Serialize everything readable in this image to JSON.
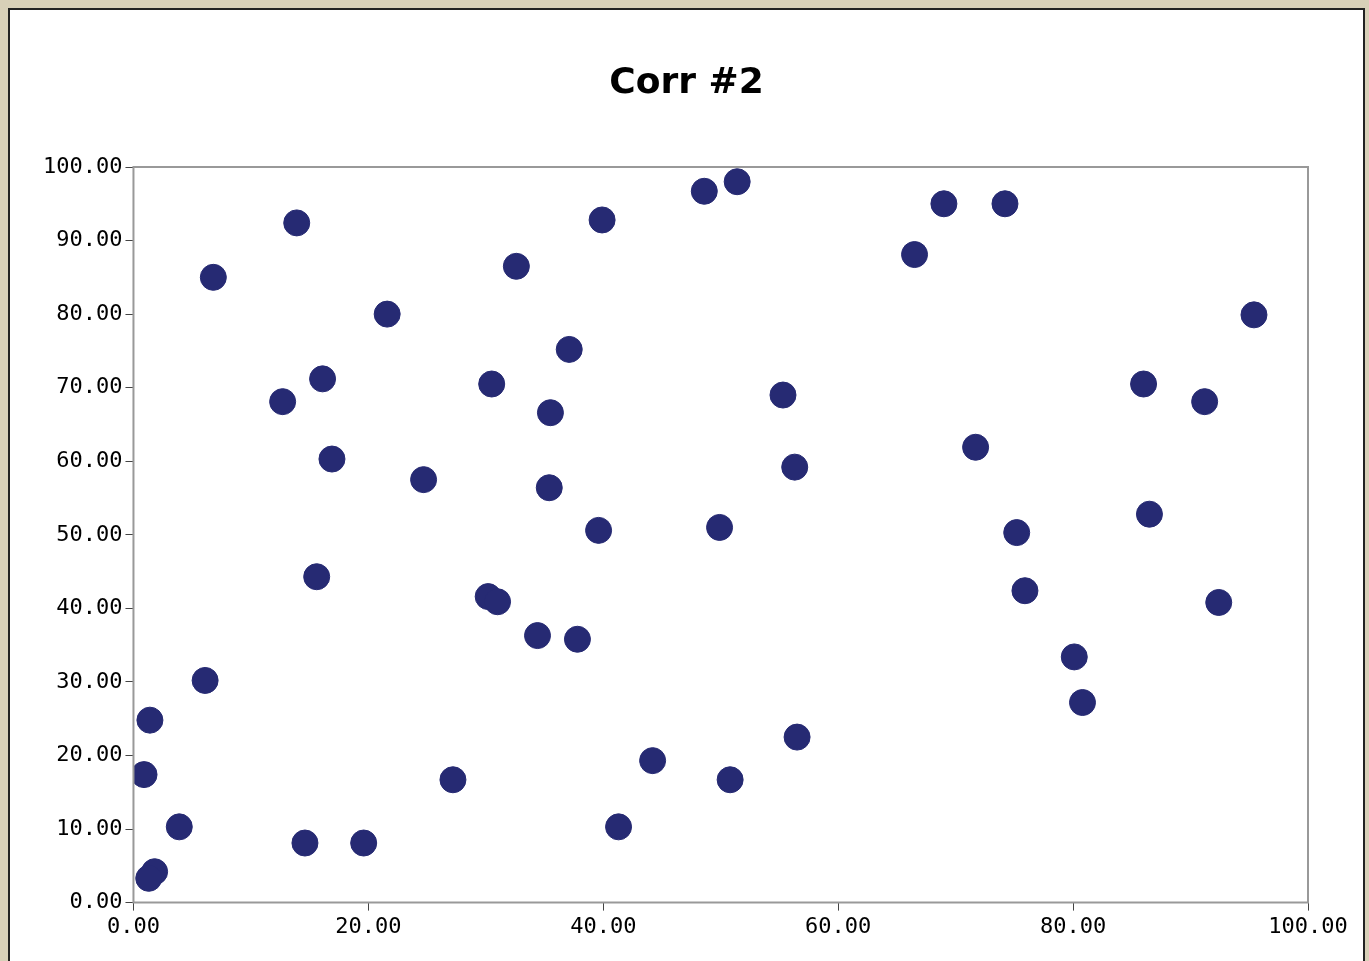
{
  "chart_data": {
    "type": "scatter",
    "title": "Corr #2",
    "marker": "circle",
    "grid": false,
    "legend": false,
    "xlim": [
      0,
      100
    ],
    "ylim": [
      0,
      100
    ],
    "xticks": [
      {
        "value": 0,
        "label": "0.00"
      },
      {
        "value": 20,
        "label": "20.00"
      },
      {
        "value": 40,
        "label": "40.00"
      },
      {
        "value": 60,
        "label": "60.00"
      },
      {
        "value": 80,
        "label": "80.00"
      },
      {
        "value": 100,
        "label": "100.00"
      }
    ],
    "yticks": [
      {
        "value": 0,
        "label": "0.00"
      },
      {
        "value": 10,
        "label": "10.00"
      },
      {
        "value": 20,
        "label": "20.00"
      },
      {
        "value": 30,
        "label": "30.00"
      },
      {
        "value": 40,
        "label": "40.00"
      },
      {
        "value": 50,
        "label": "50.00"
      },
      {
        "value": 60,
        "label": "60.00"
      },
      {
        "value": 70,
        "label": "70.00"
      },
      {
        "value": 80,
        "label": "80.00"
      },
      {
        "value": 90,
        "label": "90.00"
      },
      {
        "value": 100,
        "label": "100.00"
      }
    ],
    "series": [
      {
        "color": "#262a73",
        "x": [
          1.4,
          0.9,
          3.9,
          1.8,
          1.3,
          6.1,
          6.8,
          13.9,
          12.7,
          16.1,
          16.9,
          15.6,
          14.6,
          19.6,
          21.6,
          24.7,
          27.2,
          30.5,
          30.2,
          31.0,
          32.6,
          34.4,
          35.5,
          35.4,
          37.1,
          37.8,
          39.6,
          39.9,
          41.3,
          44.2,
          48.6,
          51.4,
          49.9,
          50.8,
          55.3,
          56.3,
          56.5,
          66.5,
          69.0,
          74.2,
          71.7,
          75.2,
          75.9,
          80.1,
          80.8,
          86.0,
          86.5,
          91.2,
          92.4,
          95.4
        ],
        "values": [
          24.8,
          17.4,
          10.3,
          4.2,
          3.3,
          30.2,
          85.0,
          92.4,
          68.1,
          71.2,
          60.3,
          44.3,
          8.1,
          8.1,
          80.0,
          57.5,
          16.7,
          70.5,
          41.6,
          40.9,
          86.5,
          36.3,
          66.6,
          56.4,
          75.2,
          35.8,
          50.6,
          92.8,
          10.3,
          19.3,
          96.7,
          98.0,
          51.0,
          16.7,
          69.0,
          59.2,
          22.5,
          88.1,
          95.0,
          95.0,
          61.9,
          50.3,
          42.4,
          33.4,
          27.2,
          70.5,
          52.8,
          68.1,
          40.8,
          79.9
        ]
      }
    ]
  }
}
